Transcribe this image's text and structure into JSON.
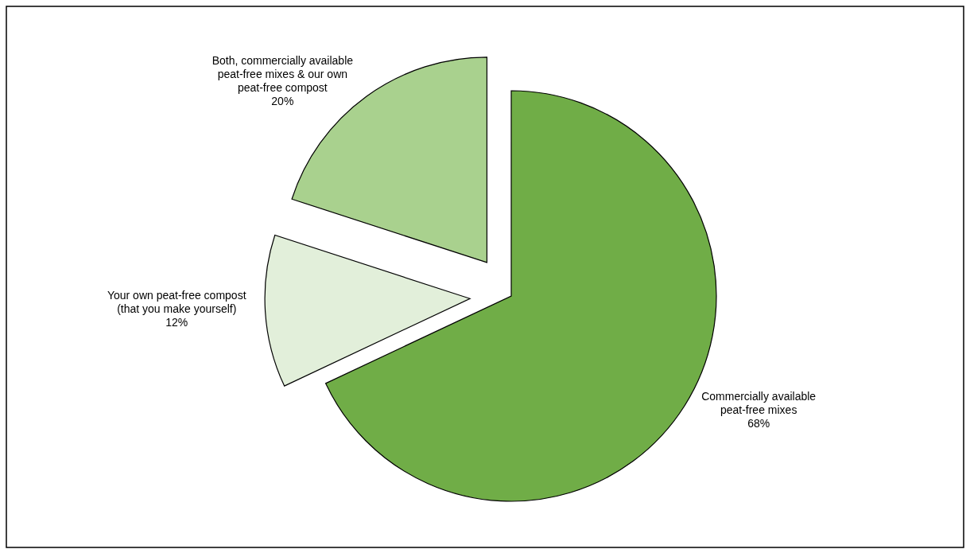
{
  "chart_data": {
    "type": "pie",
    "categories": [
      "Commercially available peat-free mixes",
      "Your own peat-free compost (that you make yourself)",
      "Both, commercially available peat-free mixes & our own peat-free compost"
    ],
    "values": [
      68,
      12,
      20
    ],
    "colors": [
      "#70ad47",
      "#e2efda",
      "#a9d18e"
    ],
    "value_labels": [
      "68%",
      "12%",
      "20%"
    ]
  }
}
